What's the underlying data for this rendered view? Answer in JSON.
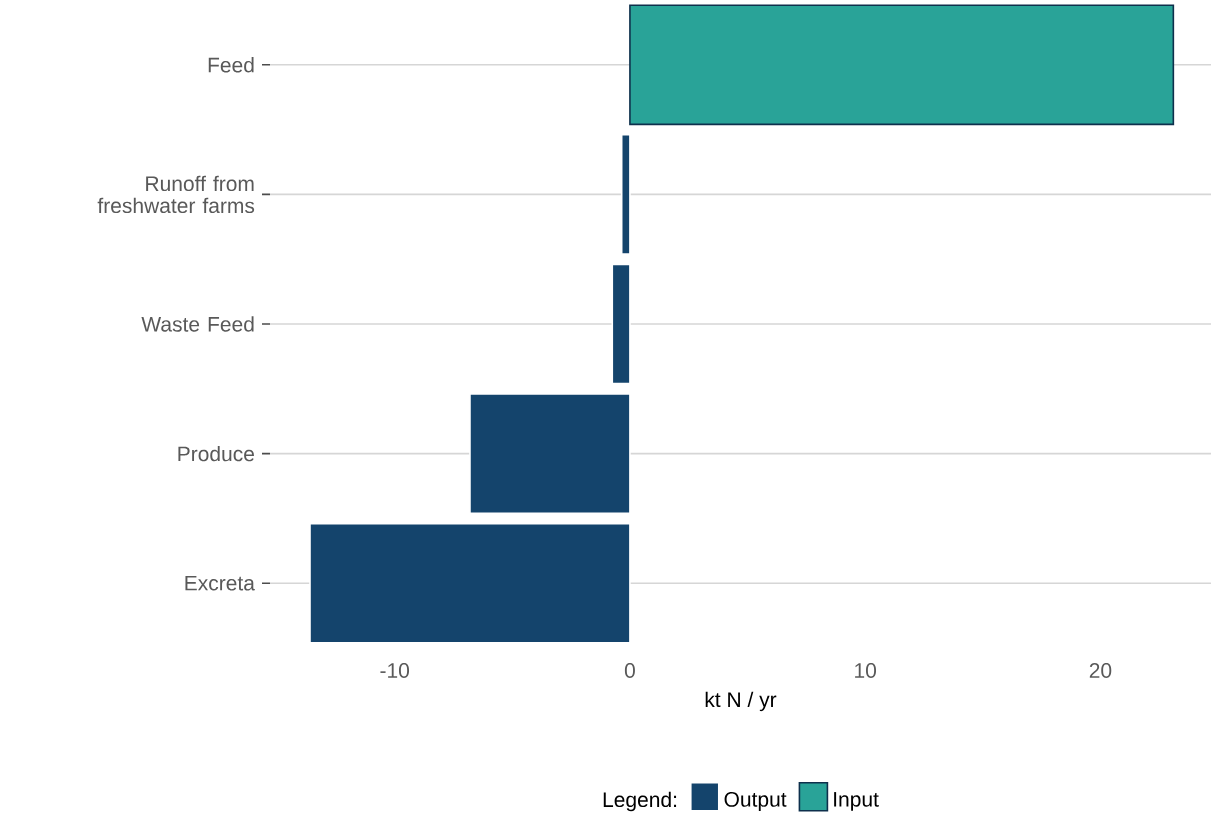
{
  "chart_data": {
    "type": "bar",
    "orientation": "horizontal",
    "xlabel": "kt N / yr",
    "legend_title": "Legend:",
    "categories": [
      "Feed",
      "Runoff from freshwater farms",
      "Waste Feed",
      "Produce",
      "Excreta"
    ],
    "series": [
      {
        "name": "Output",
        "color": "#14446c",
        "values": [
          null,
          -0.35,
          -0.75,
          -6.8,
          -13.6
        ]
      },
      {
        "name": "Input",
        "color": "#29a398",
        "values": [
          23.1,
          null,
          null,
          null,
          null
        ]
      }
    ],
    "xlim": [
      -15.3,
      24.7
    ],
    "xticks": [
      -10,
      0,
      10,
      20
    ],
    "grid": "y",
    "legend": "bottom"
  }
}
